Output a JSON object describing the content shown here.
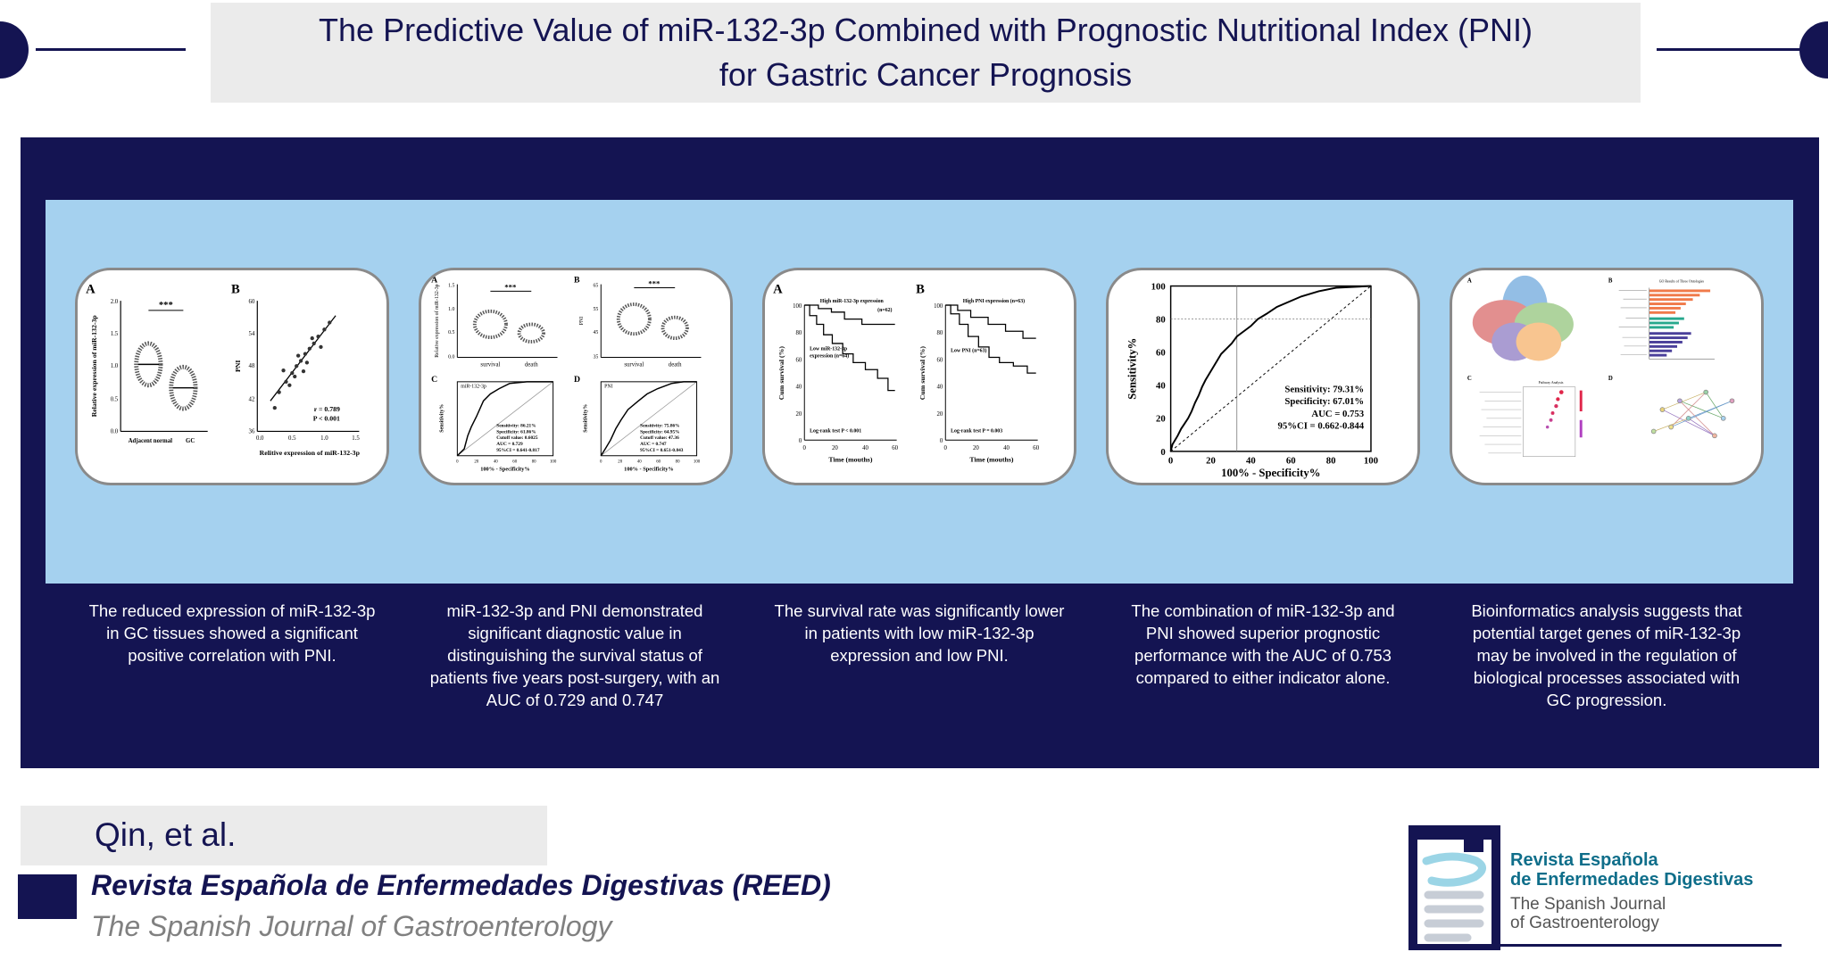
{
  "header": {
    "title": "The Predictive Value of miR-132-3p Combined with Prognostic Nutritional Index (PNI) for Gastric Cancer Prognosis"
  },
  "colors": {
    "navy": "#141452",
    "light_blue": "#a5d1ef",
    "gray_box": "#ebebeb",
    "orange_bar": "#f07a4a",
    "purple_bar": "#4a3f9a",
    "teal_text": "#0f6e8a"
  },
  "panels": [
    {
      "caption": "The reduced expression of miR-132-3p in GC tissues showed a significant positive correlation with PNI.",
      "labels": {
        "a": "A",
        "b": "B",
        "a_y_title": "Relative expression of miR-132-3p",
        "a_y_ticks": [
          "2.0",
          "1.5",
          "1.0",
          "0.5",
          "0.0"
        ],
        "a_x_labels": [
          "Adjacent normal",
          "GC"
        ],
        "a_sig": "***",
        "b_y_title": "PNI",
        "b_y_ticks": [
          "60",
          "54",
          "48",
          "42",
          "36"
        ],
        "b_x_ticks": [
          "0.0",
          "0.5",
          "1.0",
          "1.5"
        ],
        "b_x_title": "Relitive expression of miR-132-3p",
        "b_r": "r = 0.789",
        "b_p": "P < 0.001"
      }
    },
    {
      "caption": "miR-132-3p and PNI demonstrated significant diagnostic value in distinguishing the survival status of patients five years post-surgery, with an AUC of 0.729 and 0.747",
      "labels": {
        "a": "A",
        "b": "B",
        "c": "C",
        "d": "D",
        "a_y_title": "Relative expression of miR-132-3p",
        "a_y_ticks": [
          "1.5",
          "1.0",
          "0.5",
          "0.0"
        ],
        "b_y_title": "PNI",
        "b_y_ticks": [
          "65",
          "55",
          "45",
          "35"
        ],
        "groups": [
          "survival",
          "death"
        ],
        "sig": "***",
        "c_legend": "miR-132-3p",
        "d_legend": "PNI",
        "roc_y_title": "Sensitivity%",
        "roc_x_title": "100% - Specificity%",
        "roc_ticks": [
          "0",
          "20",
          "40",
          "60",
          "80",
          "100"
        ],
        "c_stats": [
          "Sensitivity: 86.21%",
          "Specificity: 61.86%",
          "Cutoff value: 0.6025",
          "AUC = 0.729",
          "95%CI = 0.641-0.817"
        ],
        "d_stats": [
          "Sensitivity: 75.86%",
          "Specificity: 64.95%",
          "Cutoff value: 47.36",
          "AUC = 0.747",
          "95%CI = 0.651-0.843"
        ]
      }
    },
    {
      "caption": "The survival rate was significantly lower in patients with low miR-132-3p expression and low PNI.",
      "labels": {
        "a": "A",
        "b": "B",
        "y_title": "Cum survival (%)",
        "y_ticks": [
          "100",
          "80",
          "60",
          "40",
          "20",
          "0"
        ],
        "x_ticks": [
          "0",
          "20",
          "40",
          "60"
        ],
        "x_title": "Time (mouths)",
        "a_high": "High miR-132-3p expression",
        "a_high_n": "(n=62)",
        "a_low_1": "Low miR-132-3p",
        "a_low_2": "expression (n=64)",
        "a_logrank": "Log-rank test P < 0.001",
        "b_high": "High PNI expression (n=63)",
        "b_low": "Low PNI (n=63)",
        "b_logrank": "Log-rank test P = 0.003"
      }
    },
    {
      "caption": "The combination of miR-132-3p and PNI showed superior prognostic performance with the AUC of 0.753 compared to either indicator alone.",
      "labels": {
        "y_title": "Sensitivity%",
        "x_title": "100% - Specificity%",
        "ticks": [
          "0",
          "20",
          "40",
          "60",
          "80",
          "100"
        ],
        "stats": [
          "Sensitivity: 79.31%",
          "Specificity: 67.01%",
          "AUC = 0.753",
          "95%CI = 0.662-0.844"
        ]
      }
    },
    {
      "caption": "Bioinformatics analysis suggests that potential target genes of miR-132-3p may be involved in the regulation of biological processes associated with GC progression.",
      "labels": {
        "a": "A",
        "b": "B",
        "c": "C",
        "d": "D",
        "b_title": "GO Results of Three Ontologies",
        "c_title": "Pathway Analysis"
      }
    }
  ],
  "footer": {
    "author": "Qin, et al.",
    "journal": "Revista Española de Enfermedades Digestivas (REED)",
    "journal_sub": "The Spanish Journal of Gastroenterology",
    "logo_line1": "Revista Española",
    "logo_line2": "de Enfermedades Digestivas",
    "logo_sub1": "The Spanish Journal",
    "logo_sub2": "of Gastroenterology"
  }
}
